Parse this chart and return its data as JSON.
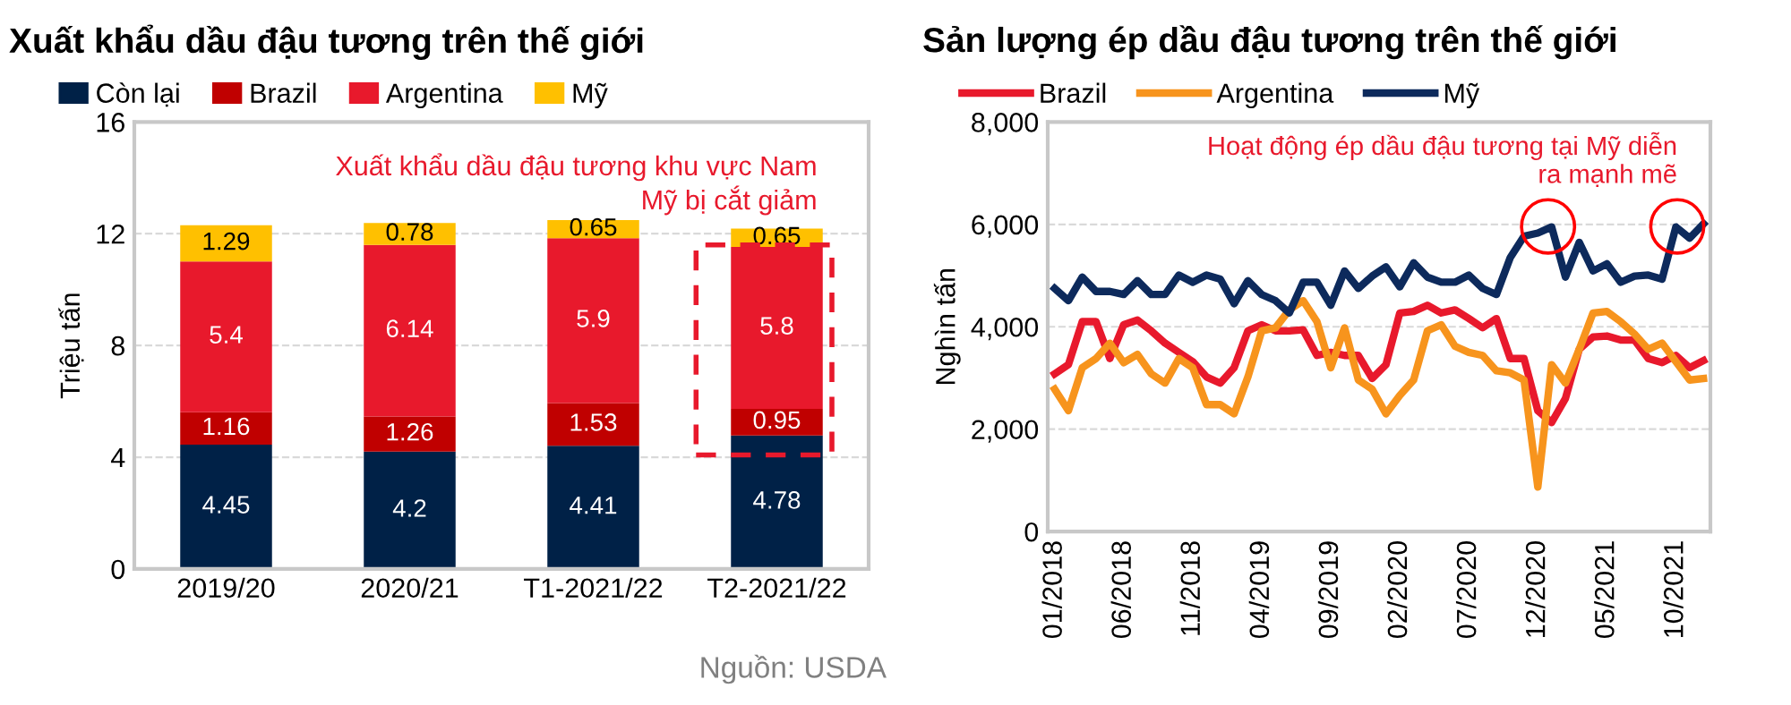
{
  "chart_data": [
    {
      "type": "bar",
      "title": "Xuất khẩu dầu đậu tương trên thế giới",
      "ylabel": "Triệu tấn",
      "stacked": true,
      "data_labels": true,
      "legend": "top",
      "grid": "y",
      "categories": [
        "2019/20",
        "2020/21",
        "T1-2021/22",
        "T2-2021/22"
      ],
      "series": [
        {
          "name": "Còn lại",
          "color": "#002147",
          "values": [
            4.45,
            4.2,
            4.41,
            4.78
          ]
        },
        {
          "name": "Brazil",
          "color": "#c00000",
          "values": [
            1.16,
            1.26,
            1.53,
            0.95
          ]
        },
        {
          "name": "Argentina",
          "color": "#e8192c",
          "values": [
            5.4,
            6.14,
            5.9,
            5.8
          ]
        },
        {
          "name": "Mỹ",
          "color": "#ffc000",
          "values": [
            1.29,
            0.78,
            0.65,
            0.65
          ]
        }
      ],
      "ylim": [
        0,
        16
      ],
      "yticks": [
        0,
        4,
        8,
        12,
        16
      ],
      "annotations": [
        "Xuất khẩu dầu đậu tương khu vực Nam\nMỹ bị cắt giảm",
        "Nguồn: USDA"
      ]
    },
    {
      "type": "line",
      "title": "Sản lượng ép dầu đậu tương trên thế giới",
      "ylabel": "Nghìn tấn",
      "legend": "top",
      "grid": "y",
      "marker": "none",
      "line_style": "solid",
      "categories": [
        "01/2018",
        null,
        null,
        null,
        null,
        "06/2018",
        null,
        null,
        null,
        null,
        "11/2018",
        null,
        null,
        null,
        null,
        "04/2019",
        null,
        null,
        null,
        null,
        "09/2019",
        null,
        null,
        null,
        null,
        "02/2020",
        null,
        null,
        null,
        null,
        "07/2020",
        null,
        null,
        null,
        null,
        "12/2020",
        null,
        null,
        null,
        null,
        "05/2021",
        null,
        null,
        null,
        null,
        "10/2021",
        null,
        null
      ],
      "series": [
        {
          "name": "Brazil",
          "color": "#e8192c",
          "values": [
            3080,
            3260,
            4100,
            4100,
            3380,
            4040,
            4130,
            3920,
            3680,
            3500,
            3320,
            3020,
            2900,
            3200,
            3920,
            4040,
            3920,
            3920,
            3940,
            3440,
            3500,
            3440,
            3440,
            2990,
            3260,
            4270,
            4300,
            4420,
            4270,
            4330,
            4160,
            3980,
            4160,
            3380,
            3380,
            2360,
            2130,
            2600,
            3560,
            3800,
            3820,
            3740,
            3740,
            3380,
            3300,
            3440,
            3200,
            3340
          ]
        },
        {
          "name": "Argentina",
          "color": "#f7941d",
          "values": [
            2780,
            2360,
            3200,
            3380,
            3680,
            3300,
            3460,
            3080,
            2900,
            3380,
            3200,
            2480,
            2480,
            2300,
            3020,
            3920,
            3980,
            4330,
            4510,
            4100,
            3200,
            3980,
            2960,
            2780,
            2300,
            2660,
            2960,
            3920,
            4040,
            3620,
            3500,
            3440,
            3140,
            3100,
            2960,
            870,
            3260,
            2900,
            3560,
            4270,
            4300,
            4100,
            3860,
            3560,
            3680,
            3320,
            2960,
            2990
          ]
        },
        {
          "name": "Mỹ",
          "color": "#0d2a5c",
          "values": [
            4750,
            4510,
            4970,
            4690,
            4690,
            4630,
            4900,
            4630,
            4630,
            5010,
            4870,
            5010,
            4930,
            4450,
            4900,
            4630,
            4510,
            4270,
            4870,
            4870,
            4420,
            5090,
            4750,
            4990,
            5170,
            4780,
            5250,
            4970,
            4870,
            4870,
            5010,
            4750,
            4630,
            5350,
            5770,
            5830,
            5950,
            4970,
            5650,
            5090,
            5230,
            4870,
            4990,
            5010,
            4930,
            5950,
            5730,
            6010
          ]
        }
      ],
      "ylim": [
        0,
        8000
      ],
      "yticks": [
        0,
        {
          "value": 2000,
          "label": "2,000"
        },
        {
          "value": 4000,
          "label": "4,000"
        },
        {
          "value": 6000,
          "label": "6,000"
        },
        {
          "value": 8000,
          "label": "8,000"
        }
      ],
      "annotations": [
        "Hoạt động ép dầu đậu tương tại Mỹ diễn\nra mạnh mẽ"
      ]
    }
  ]
}
